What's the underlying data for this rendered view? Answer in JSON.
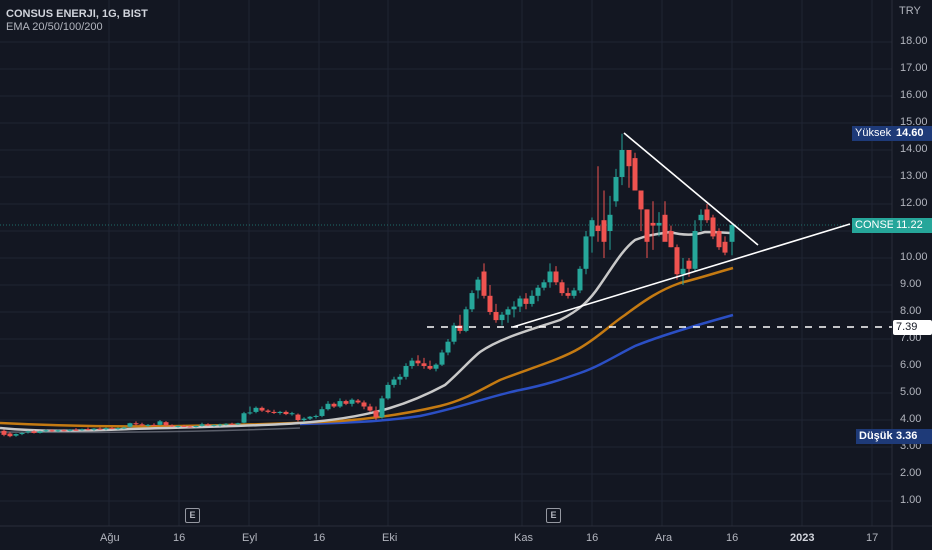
{
  "header": {
    "symbol_line": "CONSUS ENERJI, 1G, BIST",
    "indicator_line": "EMA 20/50/100/200"
  },
  "price_axis": {
    "currency": "TRY",
    "ticks": [
      "18.00",
      "17.00",
      "16.00",
      "15.00",
      "14.00",
      "13.00",
      "12.00",
      "11.00",
      "10.00",
      "9.00",
      "8.00",
      "7.00",
      "6.00",
      "5.00",
      "4.00",
      "3.00",
      "2.00",
      "1.00"
    ]
  },
  "time_axis": {
    "ticks": [
      "Ağu",
      "16",
      "Eyl",
      "16",
      "Eki",
      "Kas",
      "16",
      "Ara",
      "16",
      "2023",
      "17"
    ]
  },
  "tags": {
    "high_label": "Yüksek",
    "high_value": "14.60",
    "symbol_label": "CONSE",
    "last_value": "11.22",
    "level_value": "7.39",
    "low_label": "Düşük",
    "low_value": "3.36"
  },
  "events": [
    {
      "label": "E"
    },
    {
      "label": "E"
    }
  ],
  "colors": {
    "background": "#131722",
    "up": "#26a69a",
    "down": "#ef5350",
    "ema20": "#c8c8c8",
    "ema50": "#c47a12",
    "ema100": "#2b4fc4",
    "highlow_tag": "#1e3a78",
    "last_tag": "#26a69a"
  },
  "chart_data": {
    "type": "candlestick",
    "title": "CONSUS ENERJI, 1G, BIST",
    "ylabel": "TRY",
    "ylim": [
      0.5,
      19
    ],
    "x_ticks": [
      "Ağu",
      "16",
      "Eyl",
      "16",
      "Eki",
      "Kas",
      "16",
      "Ara",
      "16",
      "2023",
      "17"
    ],
    "high": 14.6,
    "low": 3.36,
    "last": 11.22,
    "horizontal_level": 7.39,
    "candles_ohlc_sample": [
      {
        "date": "Eki early",
        "o": 3.9,
        "h": 4.1,
        "l": 3.8,
        "c": 4.0
      },
      {
        "date": "Eki mid",
        "o": 4.8,
        "h": 5.2,
        "l": 4.7,
        "c": 5.1
      },
      {
        "date": "Eki late",
        "o": 6.5,
        "h": 7.3,
        "l": 6.3,
        "c": 7.2
      },
      {
        "date": "Kas start",
        "o": 7.5,
        "h": 8.7,
        "l": 7.3,
        "c": 8.5
      },
      {
        "date": "Kas 16",
        "o": 9.8,
        "h": 11.6,
        "l": 9.6,
        "c": 11.4
      },
      {
        "date": "Kas 22 peak",
        "o": 13.5,
        "h": 14.6,
        "l": 12.3,
        "c": 14.0
      },
      {
        "date": "Ara start",
        "o": 11.0,
        "h": 12.2,
        "l": 10.3,
        "c": 10.8
      },
      {
        "date": "Ara 8",
        "o": 10.0,
        "h": 11.0,
        "l": 9.3,
        "c": 10.8
      },
      {
        "date": "Ara 16 last",
        "o": 10.6,
        "h": 11.3,
        "l": 10.1,
        "c": 11.22
      }
    ],
    "series": [
      {
        "name": "EMA 20",
        "last": 11.0
      },
      {
        "name": "EMA 50",
        "last": 9.6
      },
      {
        "name": "EMA 100",
        "last": 7.8
      }
    ],
    "annotations": [
      {
        "type": "trendline",
        "desc": "descending resistance from 14.60 peak",
        "from": [
          14.6
        ],
        "to": [
          10.4
        ]
      },
      {
        "type": "trendline",
        "desc": "ascending support",
        "from": [
          7.39
        ],
        "to": [
          11.2
        ]
      },
      {
        "type": "hline",
        "value": 7.39,
        "style": "dashed"
      }
    ],
    "grid": true
  }
}
